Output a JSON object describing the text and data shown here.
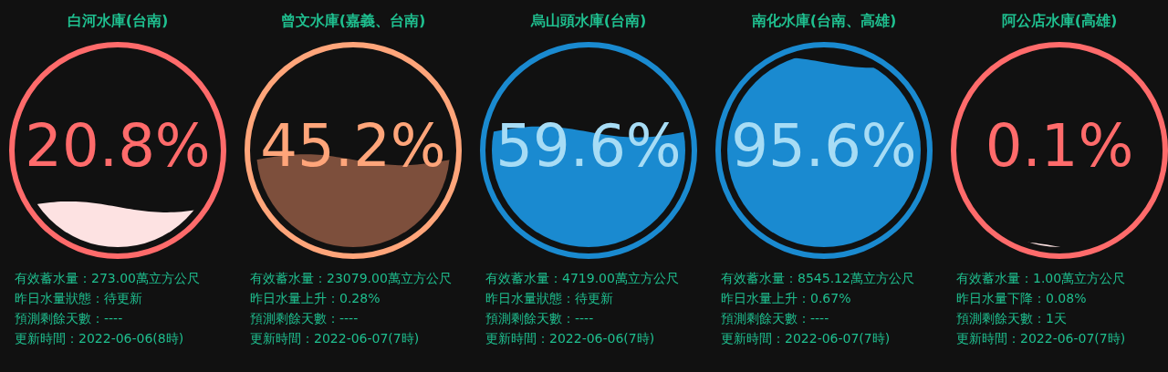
{
  "chart_data": [
    {
      "type": "other",
      "title": "白河水庫(台南)",
      "color": "#ff6b6b",
      "series": [
        {
          "color": "#fde2e2",
          "values": [
            20.8
          ],
          "value_labels": [
            "20.8%"
          ]
        }
      ],
      "annotations": [
        "有效蓄水量：273.00萬立方公尺",
        "昨日水量狀態：待更新",
        "預測剩餘天數：----",
        "更新時間：2022-06-06(8時)"
      ]
    },
    {
      "type": "other",
      "title": "曾文水庫(嘉義、台南)",
      "color": "#ffa57a",
      "series": [
        {
          "color": "#7d4f3c",
          "values": [
            45.2
          ],
          "value_labels": [
            "45.2%"
          ]
        }
      ],
      "annotations": [
        "有效蓄水量：23079.00萬立方公尺",
        "昨日水量上升：0.28%",
        "預測剩餘天數：----",
        "更新時間：2022-06-07(7時)"
      ]
    },
    {
      "type": "other",
      "title": "烏山頭水庫(台南)",
      "color": "#1a8ad0",
      "series": [
        {
          "color": "#1a8ad0",
          "values": [
            59.6
          ],
          "value_labels": [
            "59.6%"
          ]
        }
      ],
      "annotations": [
        "有效蓄水量：4719.00萬立方公尺",
        "昨日水量狀態：待更新",
        "預測剩餘天數：----",
        "更新時間：2022-06-06(7時)"
      ]
    },
    {
      "type": "other",
      "title": "南化水庫(台南、高雄)",
      "color": "#1a8ad0",
      "series": [
        {
          "color": "#1a8ad0",
          "values": [
            95.6
          ],
          "value_labels": [
            "95.6%"
          ]
        }
      ],
      "annotations": [
        "有效蓄水量：8545.12萬立方公尺",
        "昨日水量上升：0.67%",
        "預測剩餘天數：----",
        "更新時間：2022-06-07(7時)"
      ]
    },
    {
      "type": "other",
      "title": "阿公店水庫(高雄)",
      "color": "#ff6b6b",
      "series": [
        {
          "color": "#fde2e2",
          "values": [
            0.1
          ],
          "value_labels": [
            "0.1%"
          ]
        }
      ],
      "annotations": [
        "有效蓄水量：1.00萬立方公尺",
        "昨日水量下降：0.08%",
        "預測剩餘天數：1天",
        "更新時間：2022-06-07(7時)"
      ]
    }
  ]
}
